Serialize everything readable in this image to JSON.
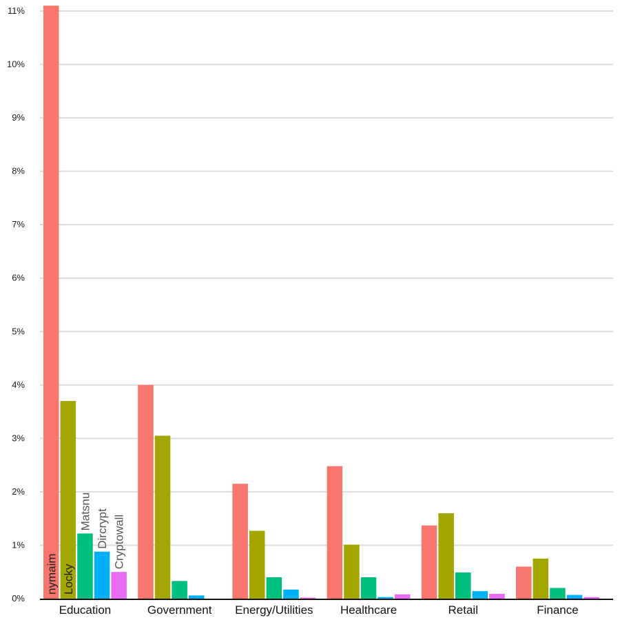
{
  "chart_data": {
    "type": "bar",
    "title": "",
    "xlabel": "",
    "ylabel": "",
    "categories": [
      "Education",
      "Government",
      "Energy/Utilities",
      "Healthcare",
      "Retail",
      "Finance"
    ],
    "ylim": [
      0,
      11
    ],
    "yticks": [
      "0%",
      "1%",
      "2%",
      "3%",
      "4%",
      "5%",
      "6%",
      "7%",
      "8%",
      "9%",
      "10%",
      "11%"
    ],
    "grid": true,
    "legend": "inline labels on first category bars",
    "series": [
      {
        "name": "nymaim",
        "color": "#F8766D",
        "label_color": "#222222",
        "values": [
          11.1,
          4.0,
          2.15,
          2.48,
          1.37,
          0.6
        ]
      },
      {
        "name": "Locky",
        "color": "#A3A500",
        "label_color": "#222222",
        "values": [
          3.7,
          3.05,
          1.27,
          1.01,
          1.6,
          0.75
        ]
      },
      {
        "name": "Matsnu",
        "color": "#00BF7D",
        "label_color": "#555555",
        "values": [
          1.22,
          0.33,
          0.4,
          0.4,
          0.49,
          0.2
        ]
      },
      {
        "name": "Dircrypt",
        "color": "#00B0F6",
        "label_color": "#555555",
        "values": [
          0.88,
          0.06,
          0.17,
          0.03,
          0.14,
          0.07
        ]
      },
      {
        "name": "Cryptowall",
        "color": "#E76BF3",
        "label_color": "#555555",
        "values": [
          0.5,
          0.0,
          0.02,
          0.08,
          0.09,
          0.03
        ]
      }
    ]
  }
}
